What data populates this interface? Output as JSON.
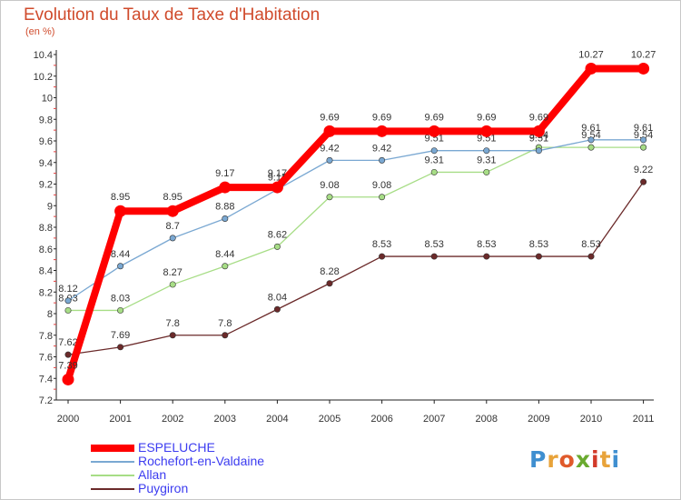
{
  "title": "Evolution du Taux de Taxe d'Habitation",
  "subtitle": "(en %)",
  "logo": "Proxiti",
  "chart_data": {
    "type": "line",
    "x": [
      "2000",
      "2001",
      "2002",
      "2003",
      "2004",
      "2005",
      "2006",
      "2007",
      "2008",
      "2009",
      "2010",
      "2011"
    ],
    "ylim": [
      7.2,
      10.4
    ],
    "yticks": [
      "7.2",
      "7.4",
      "7.6",
      "7.8",
      "8",
      "8.2",
      "8.4",
      "8.6",
      "8.8",
      "9",
      "9.2",
      "9.4",
      "9.6",
      "9.8",
      "10",
      "10.2",
      "10.4"
    ],
    "grid": false,
    "legend_position": "bottom-left",
    "series": [
      {
        "name": "Puygiron",
        "color": "#6b2a2a",
        "values": [
          7.62,
          7.69,
          7.8,
          7.8,
          8.04,
          8.28,
          8.53,
          8.53,
          8.53,
          8.53,
          8.53,
          9.22
        ]
      },
      {
        "name": "Allan",
        "color": "#a7dd86",
        "values": [
          8.03,
          8.03,
          8.27,
          8.44,
          8.62,
          9.08,
          9.08,
          9.31,
          9.31,
          9.54,
          9.54,
          9.54
        ]
      },
      {
        "name": "Rochefort-en-Valdaine",
        "color": "#7aa8d2",
        "values": [
          8.12,
          8.44,
          8.7,
          8.88,
          9.15,
          9.42,
          9.42,
          9.51,
          9.51,
          9.51,
          9.61,
          9.61
        ]
      },
      {
        "name": "ESPELUCHE",
        "color": "#ff0000",
        "values": [
          7.39,
          8.95,
          8.95,
          9.17,
          9.17,
          9.69,
          9.69,
          9.69,
          9.69,
          9.69,
          10.27,
          10.27
        ]
      }
    ]
  },
  "legend": [
    {
      "label": "ESPELUCHE",
      "color": "#ff0000"
    },
    {
      "label": "Rochefort-en-Valdaine",
      "color": "#7aa8d2"
    },
    {
      "label": "Allan",
      "color": "#a7dd86"
    },
    {
      "label": "Puygiron",
      "color": "#6b2a2a"
    }
  ]
}
